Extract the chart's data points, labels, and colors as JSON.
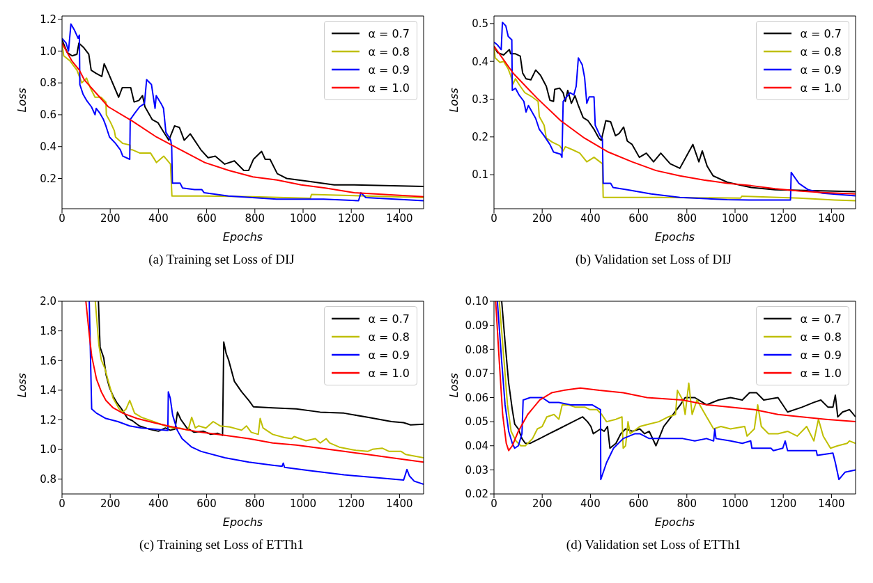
{
  "chart_data": [
    {
      "type": "line",
      "title": "(a) Training set Loss of DIJ",
      "xlabel": "Epochs",
      "ylabel": "Loss",
      "xlim": [
        0,
        1500
      ],
      "xticks": [
        0,
        200,
        400,
        600,
        800,
        1000,
        1200,
        1400
      ],
      "ylim": [
        0.01,
        1.22
      ],
      "yticks": [
        0.2,
        0.4,
        0.6,
        0.8,
        {
          "value": 1,
          "label": "1.0"
        },
        1.2
      ],
      "legend": "top right",
      "series": [
        {
          "name": "α = 0.7",
          "color": "#000000",
          "x": [
            0,
            22,
            42,
            62,
            70,
            91,
            111,
            121,
            141,
            165,
            175,
            190,
            235,
            250,
            285,
            299,
            319,
            334,
            344,
            374,
            398,
            418,
            443,
            467,
            487,
            507,
            532,
            576,
            606,
            636,
            675,
            715,
            754,
            774,
            794,
            828,
            843,
            863,
            893,
            932,
            981,
            1030,
            1129,
            1208,
            1500
          ],
          "values": [
            1.07,
            0.99,
            0.97,
            0.98,
            1.05,
            1.02,
            0.98,
            0.88,
            0.86,
            0.84,
            0.92,
            0.87,
            0.71,
            0.77,
            0.77,
            0.68,
            0.69,
            0.72,
            0.65,
            0.57,
            0.55,
            0.5,
            0.44,
            0.53,
            0.52,
            0.44,
            0.48,
            0.38,
            0.33,
            0.34,
            0.29,
            0.31,
            0.25,
            0.25,
            0.32,
            0.37,
            0.32,
            0.32,
            0.23,
            0.2,
            0.19,
            0.18,
            0.16,
            0.16,
            0.15
          ]
        },
        {
          "name": "α = 0.8",
          "color": "#bfbf00",
          "x": [
            0,
            7,
            32,
            62,
            82,
            102,
            117,
            137,
            162,
            182,
            184,
            202,
            217,
            222,
            252,
            282,
            283,
            292,
            322,
            342,
            367,
            392,
            422,
            450,
            456,
            590,
            790,
            1030,
            1035,
            1500
          ],
          "values": [
            1.05,
            0.97,
            0.94,
            0.88,
            0.8,
            0.83,
            0.77,
            0.71,
            0.71,
            0.68,
            0.6,
            0.55,
            0.5,
            0.46,
            0.42,
            0.41,
            0.38,
            0.38,
            0.36,
            0.36,
            0.36,
            0.3,
            0.34,
            0.29,
            0.09,
            0.09,
            0.085,
            0.075,
            0.1,
            0.08
          ]
        },
        {
          "name": "α = 0.9",
          "color": "#0000ff",
          "x": [
            0,
            17,
            27,
            37,
            52,
            67,
            72,
            74,
            87,
            102,
            122,
            137,
            142,
            157,
            172,
            182,
            197,
            222,
            242,
            252,
            281,
            283,
            302,
            322,
            342,
            351,
            371,
            386,
            391,
            411,
            421,
            431,
            451,
            455,
            458,
            490,
            500,
            550,
            580,
            590,
            690,
            890,
            1085,
            1230,
            1240,
            1260,
            1500
          ],
          "values": [
            1.08,
            1.05,
            1.0,
            1.17,
            1.13,
            1.08,
            1.1,
            0.79,
            0.73,
            0.69,
            0.65,
            0.6,
            0.64,
            0.61,
            0.57,
            0.53,
            0.46,
            0.42,
            0.38,
            0.34,
            0.32,
            0.57,
            0.61,
            0.65,
            0.67,
            0.82,
            0.79,
            0.64,
            0.72,
            0.67,
            0.64,
            0.49,
            0.44,
            0.4,
            0.17,
            0.17,
            0.14,
            0.13,
            0.13,
            0.11,
            0.09,
            0.07,
            0.07,
            0.06,
            0.11,
            0.08,
            0.06
          ]
        },
        {
          "name": "α = 1.0",
          "color": "#ff0000",
          "x": [
            0,
            40,
            72,
            92,
            192,
            292,
            392,
            492,
            592,
            692,
            792,
            892,
            992,
            1092,
            1212,
            1500
          ],
          "values": [
            1.05,
            0.94,
            0.88,
            0.82,
            0.65,
            0.56,
            0.46,
            0.38,
            0.3,
            0.25,
            0.21,
            0.19,
            0.16,
            0.14,
            0.11,
            0.085
          ]
        }
      ]
    },
    {
      "type": "line",
      "title": "(b) Validation set Loss of DIJ",
      "xlabel": "Epochs",
      "ylabel": "Loss",
      "xlim": [
        0,
        1500
      ],
      "xticks": [
        0,
        200,
        400,
        600,
        800,
        1000,
        1200,
        1400
      ],
      "ylim": [
        0.01,
        0.52
      ],
      "yticks": [
        0.1,
        0.2,
        0.3,
        0.4,
        0.5
      ],
      "legend": "top right",
      "series": [
        {
          "name": "α = 0.7",
          "color": "#000000",
          "x": [
            0,
            15,
            40,
            64,
            69,
            89,
            109,
            119,
            133,
            153,
            173,
            193,
            217,
            232,
            247,
            252,
            272,
            287,
            296,
            306,
            321,
            336,
            350,
            370,
            390,
            415,
            435,
            445,
            464,
            484,
            504,
            519,
            538,
            553,
            573,
            603,
            632,
            662,
            692,
            731,
            771,
            800,
            825,
            850,
            864,
            884,
            909,
            968,
            1067,
            1166,
            1383,
            1500
          ],
          "values": [
            0.44,
            0.423,
            0.417,
            0.431,
            0.42,
            0.42,
            0.414,
            0.369,
            0.354,
            0.351,
            0.377,
            0.363,
            0.334,
            0.297,
            0.294,
            0.326,
            0.329,
            0.317,
            0.294,
            0.323,
            0.289,
            0.309,
            0.283,
            0.251,
            0.243,
            0.22,
            0.197,
            0.191,
            0.243,
            0.24,
            0.203,
            0.209,
            0.226,
            0.189,
            0.18,
            0.146,
            0.157,
            0.134,
            0.157,
            0.129,
            0.117,
            0.151,
            0.18,
            0.134,
            0.163,
            0.123,
            0.097,
            0.08,
            0.066,
            0.06,
            0.057,
            0.055
          ]
        },
        {
          "name": "α = 0.8",
          "color": "#bfbf00",
          "x": [
            0,
            5,
            25,
            40,
            59,
            69,
            79,
            89,
            109,
            128,
            158,
            183,
            188,
            208,
            217,
            242,
            272,
            287,
            296,
            326,
            356,
            385,
            415,
            450,
            453,
            672,
            1023,
            1028,
            1265,
            1413,
            1500
          ],
          "values": [
            0.437,
            0.409,
            0.397,
            0.4,
            0.38,
            0.363,
            0.34,
            0.354,
            0.334,
            0.317,
            0.306,
            0.294,
            0.254,
            0.231,
            0.197,
            0.186,
            0.177,
            0.163,
            0.174,
            0.166,
            0.157,
            0.134,
            0.146,
            0.129,
            0.04,
            0.04,
            0.038,
            0.043,
            0.038,
            0.033,
            0.031
          ]
        },
        {
          "name": "α = 0.9",
          "color": "#0000ff",
          "x": [
            0,
            15,
            30,
            35,
            49,
            59,
            74,
            76,
            89,
            104,
            124,
            133,
            143,
            158,
            173,
            188,
            208,
            232,
            247,
            277,
            282,
            287,
            301,
            316,
            331,
            341,
            350,
            366,
            376,
            385,
            395,
            415,
            420,
            440,
            450,
            453,
            484,
            494,
            553,
            652,
            771,
            968,
            1058,
            1230,
            1233,
            1265,
            1304,
            1363,
            1500
          ],
          "values": [
            0.451,
            0.443,
            0.431,
            0.503,
            0.494,
            0.466,
            0.457,
            0.323,
            0.329,
            0.311,
            0.294,
            0.266,
            0.283,
            0.266,
            0.249,
            0.22,
            0.203,
            0.18,
            0.16,
            0.154,
            0.146,
            0.294,
            0.306,
            0.317,
            0.311,
            0.334,
            0.409,
            0.391,
            0.357,
            0.289,
            0.306,
            0.306,
            0.231,
            0.203,
            0.194,
            0.077,
            0.077,
            0.066,
            0.06,
            0.049,
            0.04,
            0.034,
            0.033,
            0.033,
            0.106,
            0.077,
            0.06,
            0.051,
            0.044
          ]
        },
        {
          "name": "α = 1.0",
          "color": "#ff0000",
          "x": [
            0,
            79,
            178,
            277,
            375,
            474,
            573,
            672,
            771,
            870,
            968,
            1067,
            1166,
            1265,
            1363,
            1500
          ],
          "values": [
            0.44,
            0.369,
            0.303,
            0.243,
            0.197,
            0.16,
            0.134,
            0.111,
            0.097,
            0.086,
            0.077,
            0.071,
            0.063,
            0.057,
            0.053,
            0.049
          ]
        }
      ]
    },
    {
      "type": "line",
      "title": "(c) Training set Loss of ETTh1",
      "xlabel": "Epochs",
      "ylabel": "Loss",
      "xlim": [
        0,
        1500
      ],
      "xticks": [
        0,
        200,
        400,
        600,
        800,
        1000,
        1200,
        1400
      ],
      "ylim": [
        0.7,
        2.0
      ],
      "yticks": [
        0.8,
        {
          "value": 1,
          "label": "1.0"
        },
        1.2,
        1.4,
        1.6,
        1.8,
        {
          "value": 2,
          "label": "2.0"
        }
      ],
      "legend": "top right",
      "series": [
        {
          "name": "α = 0.7",
          "color": "#000000",
          "x": [
            151,
            158,
            173,
            183,
            197,
            212,
            227,
            247,
            272,
            291,
            321,
            360,
            400,
            429,
            449,
            469,
            479,
            493,
            518,
            548,
            587,
            617,
            646,
            666,
            671,
            681,
            691,
            715,
            745,
            775,
            794,
            874,
            972,
            1071,
            1170,
            1268,
            1367,
            1417,
            1446,
            1500
          ],
          "values": [
            2.0,
            1.69,
            1.618,
            1.503,
            1.417,
            1.36,
            1.317,
            1.274,
            1.209,
            1.195,
            1.159,
            1.138,
            1.123,
            1.145,
            1.13,
            1.138,
            1.252,
            1.202,
            1.145,
            1.116,
            1.123,
            1.102,
            1.109,
            1.095,
            1.725,
            1.647,
            1.604,
            1.46,
            1.389,
            1.331,
            1.288,
            1.281,
            1.274,
            1.252,
            1.245,
            1.217,
            1.188,
            1.181,
            1.166,
            1.171
          ]
        },
        {
          "name": "α = 0.8",
          "color": "#bfbf00",
          "x": [
            138,
            153,
            163,
            178,
            192,
            212,
            237,
            252,
            266,
            281,
            291,
            301,
            330,
            380,
            429,
            459,
            488,
            523,
            538,
            553,
            567,
            597,
            627,
            656,
            696,
            745,
            765,
            785,
            814,
            822,
            834,
            874,
            923,
            953,
            963,
            1012,
            1051,
            1071,
            1096,
            1110,
            1150,
            1219,
            1268,
            1288,
            1328,
            1357,
            1407,
            1426,
            1500
          ],
          "values": [
            2.0,
            1.704,
            1.604,
            1.546,
            1.46,
            1.346,
            1.274,
            1.252,
            1.274,
            1.331,
            1.288,
            1.245,
            1.217,
            1.188,
            1.159,
            1.145,
            1.145,
            1.13,
            1.217,
            1.145,
            1.159,
            1.145,
            1.188,
            1.159,
            1.152,
            1.13,
            1.159,
            1.116,
            1.102,
            1.209,
            1.145,
            1.102,
            1.08,
            1.073,
            1.087,
            1.059,
            1.073,
            1.044,
            1.073,
            1.044,
            1.016,
            0.994,
            0.987,
            1.001,
            1.009,
            0.987,
            0.987,
            0.966,
            0.944
          ]
        },
        {
          "name": "α = 0.9",
          "color": "#0000ff",
          "x": [
            113,
            123,
            143,
            182,
            232,
            281,
            330,
            380,
            439,
            441,
            449,
            459,
            478,
            498,
            538,
            577,
            676,
            775,
            874,
            913,
            918,
            923,
            1022,
            1170,
            1268,
            1417,
            1431,
            1441,
            1461,
            1500
          ],
          "values": [
            2.0,
            1.274,
            1.245,
            1.209,
            1.188,
            1.159,
            1.145,
            1.138,
            1.128,
            1.389,
            1.346,
            1.231,
            1.13,
            1.073,
            1.016,
            0.987,
            0.944,
            0.915,
            0.894,
            0.887,
            0.908,
            0.88,
            0.858,
            0.829,
            0.815,
            0.794,
            0.865,
            0.822,
            0.786,
            0.765
          ]
        },
        {
          "name": "α = 1.0",
          "color": "#ff0000",
          "x": [
            99,
            113,
            123,
            143,
            163,
            182,
            212,
            252,
            311,
            380,
            478,
            577,
            676,
            775,
            874,
            972,
            1071,
            1170,
            1268,
            1367,
            1500
          ],
          "values": [
            2.0,
            1.776,
            1.632,
            1.475,
            1.389,
            1.331,
            1.281,
            1.245,
            1.209,
            1.181,
            1.145,
            1.116,
            1.095,
            1.073,
            1.044,
            1.03,
            1.009,
            0.987,
            0.966,
            0.944,
            0.915
          ]
        }
      ]
    },
    {
      "type": "line",
      "title": "(d) Validation set Loss of ETTh1",
      "xlabel": "Epochs",
      "ylabel": "Loss",
      "xlim": [
        0,
        1500
      ],
      "xticks": [
        0,
        200,
        400,
        600,
        800,
        1000,
        1200,
        1400
      ],
      "ylim": [
        0.02,
        0.1
      ],
      "yticks": [
        {
          "value": 0.02,
          "label": "0.02"
        },
        {
          "value": 0.03,
          "label": "0.03"
        },
        {
          "value": 0.04,
          "label": "0.04"
        },
        {
          "value": 0.05,
          "label": "0.05"
        },
        {
          "value": 0.06,
          "label": "0.06"
        },
        {
          "value": 0.07,
          "label": "0.07"
        },
        {
          "value": 0.08,
          "label": "0.08"
        },
        {
          "value": 0.09,
          "label": "0.09"
        },
        {
          "value": 0.1,
          "label": "0.10"
        }
      ],
      "legend": "top right",
      "series": [
        {
          "name": "α = 0.7",
          "color": "#000000",
          "x": [
            32,
            46,
            61,
            76,
            86,
            101,
            116,
            130,
            150,
            190,
            229,
            269,
            308,
            348,
            368,
            388,
            402,
            412,
            427,
            442,
            457,
            471,
            481,
            506,
            526,
            546,
            575,
            605,
            625,
            644,
            672,
            684,
            704,
            743,
            773,
            793,
            833,
            882,
            931,
            981,
            1030,
            1060,
            1089,
            1119,
            1178,
            1218,
            1277,
            1327,
            1356,
            1386,
            1406,
            1416,
            1426,
            1446,
            1475,
            1500
          ],
          "values": [
            0.1,
            0.083,
            0.066,
            0.055,
            0.049,
            0.047,
            0.043,
            0.041,
            0.041,
            0.043,
            0.045,
            0.047,
            0.049,
            0.051,
            0.052,
            0.05,
            0.048,
            0.045,
            0.046,
            0.047,
            0.046,
            0.048,
            0.039,
            0.041,
            0.045,
            0.047,
            0.046,
            0.047,
            0.045,
            0.046,
            0.04,
            0.043,
            0.048,
            0.053,
            0.057,
            0.06,
            0.06,
            0.057,
            0.059,
            0.06,
            0.059,
            0.062,
            0.062,
            0.059,
            0.06,
            0.054,
            0.056,
            0.058,
            0.059,
            0.056,
            0.056,
            0.061,
            0.052,
            0.054,
            0.055,
            0.052
          ]
        },
        {
          "name": "α = 0.8",
          "color": "#bfbf00",
          "x": [
            22,
            42,
            56,
            71,
            91,
            111,
            130,
            160,
            180,
            200,
            219,
            249,
            269,
            283,
            308,
            338,
            378,
            398,
            427,
            447,
            467,
            506,
            531,
            536,
            546,
            556,
            565,
            605,
            644,
            684,
            723,
            753,
            761,
            783,
            793,
            808,
            822,
            842,
            882,
            911,
            941,
            981,
            1040,
            1050,
            1080,
            1094,
            1109,
            1139,
            1178,
            1218,
            1258,
            1297,
            1327,
            1346,
            1366,
            1396,
            1426,
            1465,
            1475,
            1500
          ],
          "values": [
            0.1,
            0.075,
            0.057,
            0.046,
            0.042,
            0.04,
            0.04,
            0.043,
            0.047,
            0.048,
            0.052,
            0.053,
            0.051,
            0.057,
            0.057,
            0.056,
            0.056,
            0.055,
            0.055,
            0.053,
            0.05,
            0.051,
            0.052,
            0.039,
            0.04,
            0.05,
            0.045,
            0.048,
            0.049,
            0.05,
            0.052,
            0.053,
            0.063,
            0.059,
            0.053,
            0.066,
            0.053,
            0.059,
            0.052,
            0.047,
            0.048,
            0.047,
            0.048,
            0.044,
            0.047,
            0.057,
            0.048,
            0.045,
            0.045,
            0.046,
            0.044,
            0.048,
            0.042,
            0.051,
            0.044,
            0.039,
            0.04,
            0.041,
            0.042,
            0.041
          ]
        },
        {
          "name": "α = 0.9",
          "color": "#0000ff",
          "x": [
            14,
            32,
            46,
            61,
            76,
            86,
            101,
            116,
            121,
            150,
            180,
            200,
            229,
            269,
            318,
            388,
            407,
            442,
            443,
            467,
            496,
            536,
            585,
            605,
            644,
            684,
            783,
            833,
            882,
            911,
            916,
            921,
            981,
            1030,
            1065,
            1070,
            1149,
            1159,
            1198,
            1208,
            1218,
            1337,
            1341,
            1406,
            1416,
            1431,
            1456,
            1500
          ],
          "values": [
            0.1,
            0.075,
            0.057,
            0.046,
            0.041,
            0.039,
            0.04,
            0.045,
            0.059,
            0.06,
            0.06,
            0.06,
            0.058,
            0.058,
            0.057,
            0.057,
            0.057,
            0.055,
            0.026,
            0.033,
            0.039,
            0.043,
            0.045,
            0.045,
            0.043,
            0.043,
            0.043,
            0.042,
            0.043,
            0.042,
            0.047,
            0.043,
            0.042,
            0.041,
            0.042,
            0.039,
            0.039,
            0.038,
            0.039,
            0.042,
            0.038,
            0.038,
            0.036,
            0.037,
            0.033,
            0.026,
            0.029,
            0.03
          ]
        },
        {
          "name": "α = 1.0",
          "color": "#ff0000",
          "x": [
            7,
            22,
            36,
            51,
            61,
            76,
            101,
            140,
            190,
            239,
            289,
            358,
            437,
            536,
            635,
            783,
            882,
            981,
            1080,
            1178,
            1277,
            1376,
            1500
          ],
          "values": [
            0.1,
            0.075,
            0.053,
            0.041,
            0.038,
            0.04,
            0.046,
            0.053,
            0.059,
            0.062,
            0.063,
            0.064,
            0.063,
            0.062,
            0.06,
            0.059,
            0.057,
            0.056,
            0.055,
            0.053,
            0.052,
            0.051,
            0.05
          ]
        }
      ]
    }
  ]
}
